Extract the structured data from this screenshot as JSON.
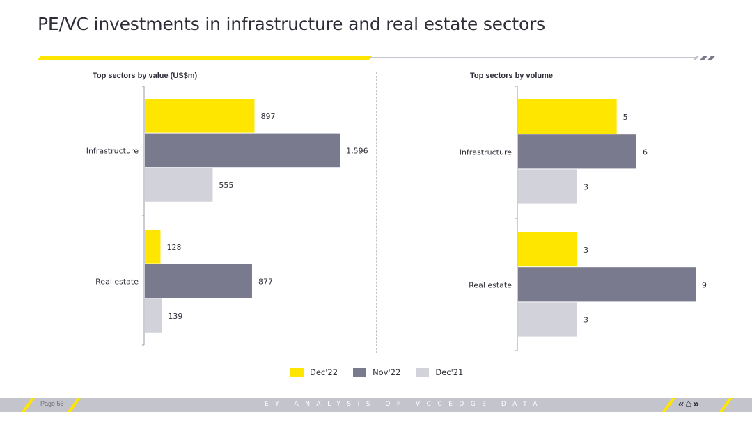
{
  "page": {
    "title": "PE/VC investments in infrastructure and real estate sectors",
    "footer_page": "Page 55",
    "footer_center": "EY ANALYSIS OF VCCEDGE DATA",
    "nav_prev": "«",
    "nav_home": "⌂",
    "nav_next": "»"
  },
  "colors": {
    "dec22": "#ffe600",
    "nov22": "#7a7a8f",
    "dec21": "#d2d2db",
    "text": "#2e2e38"
  },
  "legend": [
    {
      "label": "Dec'22",
      "color": "#ffe600"
    },
    {
      "label": "Nov'22",
      "color": "#7a7a8f"
    },
    {
      "label": "Dec'21",
      "color": "#d2d2db"
    }
  ],
  "chart_data": [
    {
      "type": "bar",
      "orientation": "horizontal",
      "title": "Top sectors by value (US$m)",
      "categories": [
        "Infrastructure",
        "Real estate"
      ],
      "series": [
        {
          "name": "Dec'22",
          "values": [
            897,
            128
          ],
          "labels": [
            "897",
            "128"
          ]
        },
        {
          "name": "Nov'22",
          "values": [
            1596,
            877
          ],
          "labels": [
            "1,596",
            "877"
          ]
        },
        {
          "name": "Dec'21",
          "values": [
            555,
            139
          ],
          "labels": [
            "555",
            "139"
          ]
        }
      ],
      "xlim": [
        0,
        1800
      ]
    },
    {
      "type": "bar",
      "orientation": "horizontal",
      "title": "Top sectors by volume",
      "categories": [
        "Infrastructure",
        "Real estate"
      ],
      "series": [
        {
          "name": "Dec'22",
          "values": [
            5,
            3
          ],
          "labels": [
            "5",
            "3"
          ]
        },
        {
          "name": "Nov'22",
          "values": [
            6,
            9
          ],
          "labels": [
            "6",
            "9"
          ]
        },
        {
          "name": "Dec'21",
          "values": [
            3,
            3
          ],
          "labels": [
            "3",
            "3"
          ]
        }
      ],
      "xlim": [
        0,
        9
      ]
    }
  ]
}
